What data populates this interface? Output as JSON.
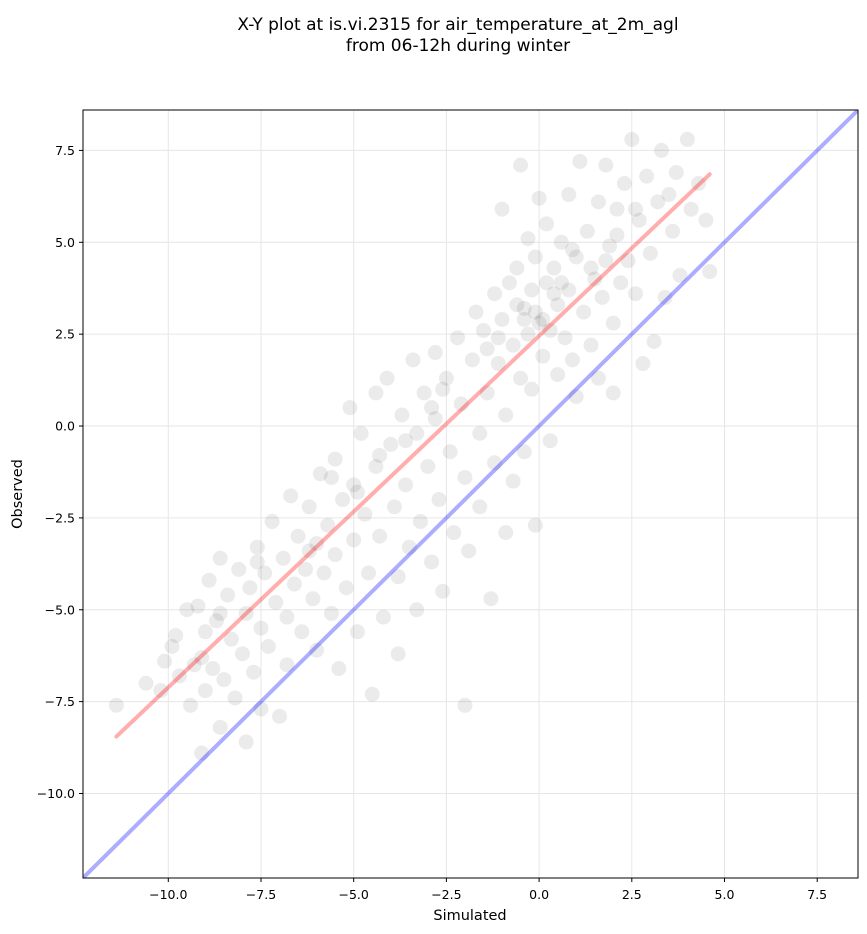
{
  "chart_data": {
    "type": "scatter",
    "title": "X-Y plot at is.vi.2315 for air_temperature_at_2m_agl",
    "subtitle": "from 06-12h during winter",
    "xlabel": "Simulated",
    "ylabel": "Observed",
    "xlim": [
      -12.3,
      8.6
    ],
    "ylim": [
      -12.3,
      8.6
    ],
    "xticks": [
      -10.0,
      -7.5,
      -5.0,
      -2.5,
      0.0,
      2.5,
      5.0,
      7.5
    ],
    "xtick_labels": [
      "−10.0",
      "−7.5",
      "−5.0",
      "−2.5",
      "0.0",
      "2.5",
      "5.0",
      "7.5"
    ],
    "yticks": [
      -10.0,
      -7.5,
      -5.0,
      -2.5,
      0.0,
      2.5,
      5.0,
      7.5
    ],
    "ytick_labels": [
      "−10.0",
      "−7.5",
      "−5.0",
      "−2.5",
      "0.0",
      "2.5",
      "5.0",
      "7.5"
    ],
    "grid": true,
    "point_color": "#000000",
    "point_opacity": 0.08,
    "identity_line": {
      "x": [
        -12.3,
        8.6
      ],
      "y": [
        -12.3,
        8.6
      ],
      "color": "#0000ff"
    },
    "fit_line": {
      "x": [
        -11.4,
        4.6
      ],
      "y": [
        -8.45,
        6.85
      ],
      "color": "#ff0000"
    },
    "points": [
      [
        -11.4,
        -7.6
      ],
      [
        -10.6,
        -7.0
      ],
      [
        -10.2,
        -7.2
      ],
      [
        -10.1,
        -6.4
      ],
      [
        -9.9,
        -6.0
      ],
      [
        -9.8,
        -5.7
      ],
      [
        -9.7,
        -6.8
      ],
      [
        -9.5,
        -5.0
      ],
      [
        -9.4,
        -7.6
      ],
      [
        -9.3,
        -6.5
      ],
      [
        -9.2,
        -4.9
      ],
      [
        -9.1,
        -8.9
      ],
      [
        -9.0,
        -7.2
      ],
      [
        -9.0,
        -5.6
      ],
      [
        -8.9,
        -4.2
      ],
      [
        -8.8,
        -6.6
      ],
      [
        -8.7,
        -5.3
      ],
      [
        -8.6,
        -3.6
      ],
      [
        -8.6,
        -8.2
      ],
      [
        -8.5,
        -6.9
      ],
      [
        -8.4,
        -4.6
      ],
      [
        -8.3,
        -5.8
      ],
      [
        -8.2,
        -7.4
      ],
      [
        -8.1,
        -3.9
      ],
      [
        -8.0,
        -6.2
      ],
      [
        -7.9,
        -5.1
      ],
      [
        -7.9,
        -8.6
      ],
      [
        -7.8,
        -4.4
      ],
      [
        -7.7,
        -6.7
      ],
      [
        -7.6,
        -3.3
      ],
      [
        -7.5,
        -5.5
      ],
      [
        -7.5,
        -7.7
      ],
      [
        -7.4,
        -4.0
      ],
      [
        -7.3,
        -6.0
      ],
      [
        -7.2,
        -2.6
      ],
      [
        -7.1,
        -4.8
      ],
      [
        -7.0,
        -7.9
      ],
      [
        -6.9,
        -3.6
      ],
      [
        -6.8,
        -5.2
      ],
      [
        -6.8,
        -6.5
      ],
      [
        -6.7,
        -1.9
      ],
      [
        -6.6,
        -4.3
      ],
      [
        -6.5,
        -3.0
      ],
      [
        -6.4,
        -5.6
      ],
      [
        -6.3,
        -3.9
      ],
      [
        -6.2,
        -2.2
      ],
      [
        -6.1,
        -4.7
      ],
      [
        -6.0,
        -6.1
      ],
      [
        -6.0,
        -3.2
      ],
      [
        -5.9,
        -1.3
      ],
      [
        -5.8,
        -4.0
      ],
      [
        -5.7,
        -2.7
      ],
      [
        -5.6,
        -5.1
      ],
      [
        -5.5,
        -0.9
      ],
      [
        -5.5,
        -3.5
      ],
      [
        -5.4,
        -6.6
      ],
      [
        -5.3,
        -2.0
      ],
      [
        -5.2,
        -4.4
      ],
      [
        -5.1,
        0.5
      ],
      [
        -5.0,
        -1.6
      ],
      [
        -5.0,
        -3.1
      ],
      [
        -4.9,
        -5.6
      ],
      [
        -4.8,
        -0.2
      ],
      [
        -4.7,
        -2.4
      ],
      [
        -4.6,
        -4.0
      ],
      [
        -4.5,
        -7.3
      ],
      [
        -4.4,
        0.9
      ],
      [
        -4.4,
        -1.1
      ],
      [
        -4.3,
        -3.0
      ],
      [
        -4.2,
        -5.2
      ],
      [
        -4.1,
        1.3
      ],
      [
        -4.0,
        -0.5
      ],
      [
        -3.9,
        -2.2
      ],
      [
        -3.8,
        -4.1
      ],
      [
        -3.8,
        -6.2
      ],
      [
        -3.7,
        0.3
      ],
      [
        -3.6,
        -1.6
      ],
      [
        -3.5,
        -3.3
      ],
      [
        -3.4,
        1.8
      ],
      [
        -3.3,
        -0.2
      ],
      [
        -3.3,
        -5.0
      ],
      [
        -3.2,
        -2.6
      ],
      [
        -3.1,
        0.9
      ],
      [
        -3.0,
        -1.1
      ],
      [
        -2.9,
        -3.7
      ],
      [
        -2.8,
        2.0
      ],
      [
        -2.8,
        0.2
      ],
      [
        -2.7,
        -2.0
      ],
      [
        -2.6,
        -4.5
      ],
      [
        -2.5,
        1.3
      ],
      [
        -2.4,
        -0.7
      ],
      [
        -2.3,
        -2.9
      ],
      [
        -2.2,
        2.4
      ],
      [
        -2.1,
        0.6
      ],
      [
        -2.0,
        -1.4
      ],
      [
        -2.0,
        -7.6
      ],
      [
        -1.9,
        -3.4
      ],
      [
        -1.8,
        1.8
      ],
      [
        -1.7,
        3.1
      ],
      [
        -1.6,
        -0.2
      ],
      [
        -1.6,
        -2.2
      ],
      [
        -1.5,
        2.6
      ],
      [
        -1.4,
        0.9
      ],
      [
        -1.3,
        -4.7
      ],
      [
        -1.2,
        3.6
      ],
      [
        -1.2,
        -1.0
      ],
      [
        -1.1,
        1.7
      ],
      [
        -1.0,
        2.9
      ],
      [
        -1.0,
        5.9
      ],
      [
        -0.9,
        0.3
      ],
      [
        -0.9,
        -2.9
      ],
      [
        -0.8,
        3.9
      ],
      [
        -0.7,
        2.2
      ],
      [
        -0.7,
        -1.5
      ],
      [
        -0.6,
        4.3
      ],
      [
        -0.5,
        1.3
      ],
      [
        -0.5,
        7.1
      ],
      [
        -0.4,
        3.2
      ],
      [
        -0.4,
        -0.7
      ],
      [
        -0.3,
        2.5
      ],
      [
        -0.3,
        5.1
      ],
      [
        -0.2,
        1.0
      ],
      [
        -0.2,
        3.7
      ],
      [
        -0.1,
        4.6
      ],
      [
        -0.1,
        -2.7
      ],
      [
        0.0,
        2.8
      ],
      [
        0.0,
        6.2
      ],
      [
        0.1,
        1.9
      ],
      [
        0.2,
        3.9
      ],
      [
        0.2,
        5.5
      ],
      [
        0.3,
        2.6
      ],
      [
        0.3,
        -0.4
      ],
      [
        0.4,
        4.3
      ],
      [
        0.5,
        3.3
      ],
      [
        0.5,
        1.4
      ],
      [
        0.6,
        5.0
      ],
      [
        0.7,
        2.4
      ],
      [
        0.8,
        6.3
      ],
      [
        0.8,
        3.7
      ],
      [
        0.9,
        1.8
      ],
      [
        1.0,
        4.6
      ],
      [
        1.0,
        0.8
      ],
      [
        1.1,
        7.2
      ],
      [
        1.2,
        3.1
      ],
      [
        1.3,
        5.3
      ],
      [
        1.4,
        2.2
      ],
      [
        1.5,
        4.0
      ],
      [
        1.6,
        6.1
      ],
      [
        1.6,
        1.3
      ],
      [
        1.7,
        3.5
      ],
      [
        1.8,
        7.1
      ],
      [
        1.9,
        4.9
      ],
      [
        2.0,
        2.8
      ],
      [
        2.0,
        0.9
      ],
      [
        2.1,
        5.9
      ],
      [
        2.2,
        3.9
      ],
      [
        2.3,
        6.6
      ],
      [
        2.4,
        4.5
      ],
      [
        2.5,
        7.8
      ],
      [
        2.6,
        3.6
      ],
      [
        2.7,
        5.6
      ],
      [
        2.8,
        1.7
      ],
      [
        2.9,
        6.8
      ],
      [
        3.0,
        4.7
      ],
      [
        3.1,
        2.3
      ],
      [
        3.2,
        6.1
      ],
      [
        3.3,
        7.5
      ],
      [
        3.4,
        3.5
      ],
      [
        3.6,
        5.3
      ],
      [
        3.7,
        6.9
      ],
      [
        3.8,
        4.1
      ],
      [
        4.0,
        7.8
      ],
      [
        4.1,
        5.9
      ],
      [
        4.3,
        6.6
      ],
      [
        4.5,
        5.6
      ],
      [
        4.6,
        4.2
      ],
      [
        -0.4,
        2.9
      ],
      [
        -0.1,
        3.1
      ],
      [
        0.1,
        2.9
      ],
      [
        0.4,
        3.6
      ],
      [
        -0.6,
        3.3
      ],
      [
        0.6,
        3.9
      ],
      [
        1.4,
        4.3
      ],
      [
        1.8,
        4.5
      ],
      [
        2.1,
        5.2
      ],
      [
        -1.1,
        2.4
      ],
      [
        -1.4,
        2.1
      ],
      [
        -2.6,
        1.0
      ],
      [
        -3.6,
        -0.4
      ],
      [
        -4.9,
        -1.8
      ],
      [
        -6.2,
        -3.4
      ],
      [
        -7.6,
        -3.7
      ],
      [
        -8.6,
        -5.1
      ],
      [
        -9.1,
        -6.3
      ],
      [
        -5.6,
        -1.4
      ],
      [
        -4.3,
        -0.8
      ],
      [
        -2.9,
        0.5
      ],
      [
        0.9,
        4.8
      ],
      [
        2.6,
        5.9
      ],
      [
        3.5,
        6.3
      ]
    ]
  }
}
